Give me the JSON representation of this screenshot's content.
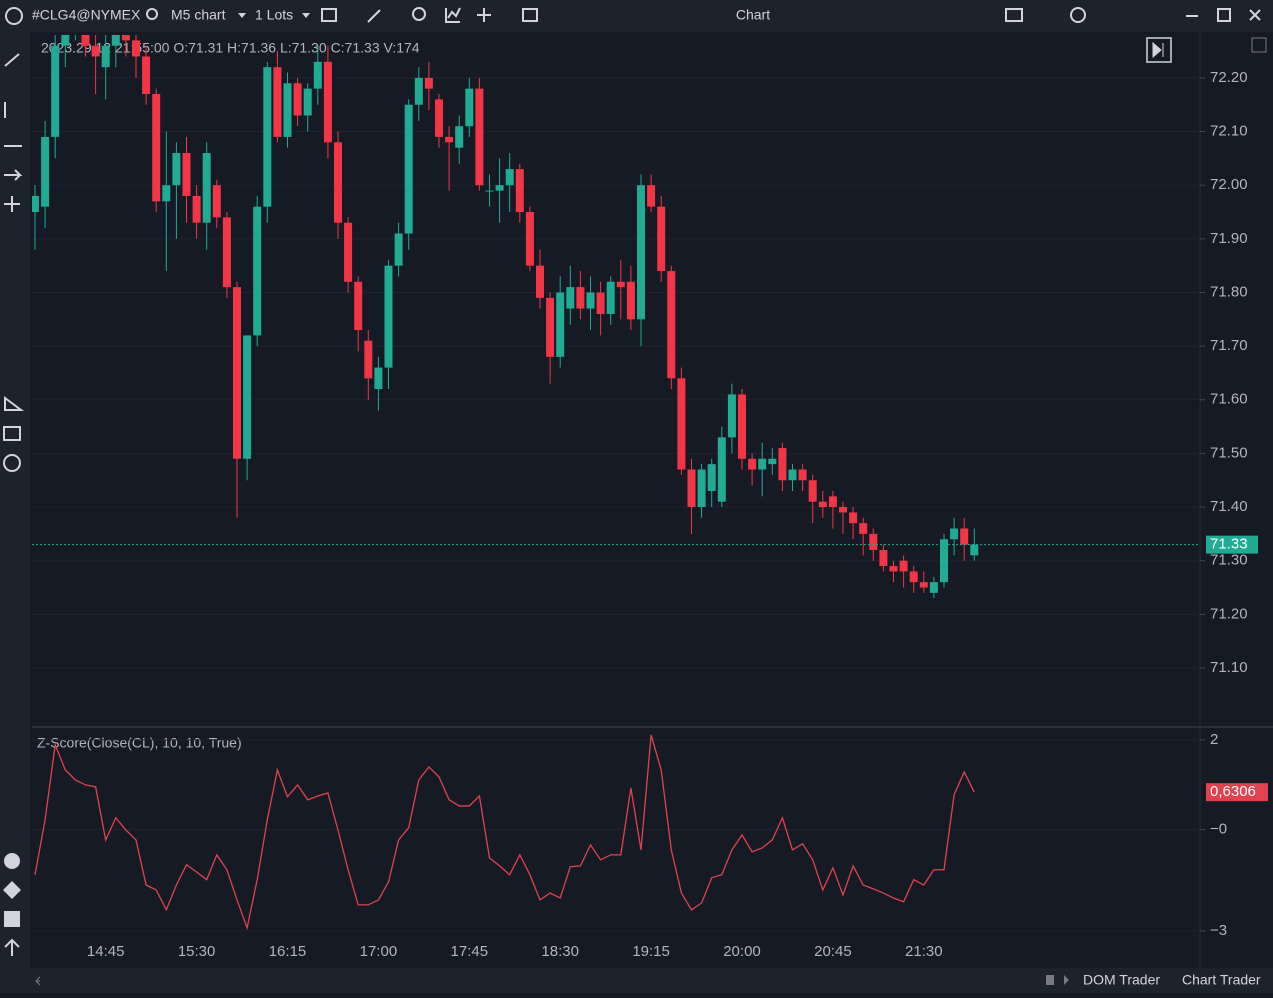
{
  "toolbar": {
    "symbol": "#CLG4@NYMEX",
    "timeframe": "M5 chart",
    "lots": "1 Lots",
    "window_title": "Chart"
  },
  "chart_data": [
    {
      "type": "candlestick",
      "ohlc_header": "2023.29.12 21:55:00 O:71.31 H:71.36 L:71.30 C:71.33 V:174",
      "categories": [
        null,
        null,
        null,
        null,
        null,
        null,
        null,
        "14:45",
        null,
        null,
        null,
        null,
        null,
        null,
        null,
        null,
        "15:30",
        null,
        null,
        null,
        null,
        null,
        null,
        null,
        null,
        "16:15",
        null,
        null,
        null,
        null,
        null,
        null,
        null,
        null,
        "17:00",
        null,
        null,
        null,
        null,
        null,
        null,
        null,
        null,
        "17:45",
        null,
        null,
        null,
        null,
        null,
        null,
        null,
        null,
        "18:30",
        null,
        null,
        null,
        null,
        null,
        null,
        null,
        null,
        "19:15",
        null,
        null,
        null,
        null,
        null,
        null,
        null,
        null,
        "20:00",
        null,
        null,
        null,
        null,
        null,
        null,
        null,
        null,
        "20:45",
        null,
        null,
        null,
        null,
        null,
        null,
        null,
        null,
        "21:30",
        null,
        null,
        null,
        null,
        null
      ],
      "open": [
        71.95,
        71.96,
        72.09,
        72.26,
        72.3,
        72.31,
        72.26,
        72.22,
        72.26,
        72.28,
        72.27,
        72.24,
        72.17,
        71.97,
        72.0,
        72.06,
        71.98,
        71.93,
        72.0,
        71.94,
        71.81,
        71.49,
        71.72,
        71.96,
        72.22,
        72.09,
        72.19,
        72.13,
        72.18,
        72.23,
        72.08,
        71.93,
        71.82,
        71.71,
        71.62,
        71.66,
        71.85,
        71.91,
        72.15,
        72.2,
        72.16,
        72.09,
        72.07,
        72.11,
        72.18,
        71.99,
        71.99,
        72.0,
        72.03,
        71.95,
        71.85,
        71.79,
        71.68,
        71.77,
        71.81,
        71.77,
        71.8,
        71.76,
        71.82,
        71.82,
        71.75,
        72.0,
        71.96,
        71.84,
        71.64,
        71.47,
        71.4,
        71.43,
        71.41,
        71.53,
        71.61,
        71.49,
        71.47,
        71.48,
        71.51,
        71.45,
        71.47,
        71.45,
        71.41,
        71.42,
        71.4,
        71.39,
        71.37,
        71.35,
        71.32,
        71.29,
        71.3,
        71.28,
        71.26,
        71.24,
        71.26,
        71.34,
        71.36,
        71.31
      ],
      "high": [
        72.0,
        72.12,
        72.3,
        72.33,
        72.34,
        72.33,
        72.28,
        72.29,
        72.3,
        72.32,
        72.3,
        72.26,
        72.18,
        72.1,
        72.08,
        72.09,
        72.0,
        72.08,
        72.01,
        71.95,
        71.82,
        71.72,
        71.98,
        72.23,
        72.25,
        72.21,
        72.2,
        72.19,
        72.26,
        72.26,
        72.1,
        71.94,
        71.83,
        71.73,
        71.68,
        71.86,
        71.93,
        72.16,
        72.22,
        72.23,
        72.17,
        72.11,
        72.13,
        72.2,
        72.2,
        72.02,
        72.05,
        72.06,
        72.04,
        71.96,
        71.88,
        71.8,
        71.83,
        71.85,
        71.84,
        71.83,
        71.82,
        71.83,
        71.86,
        71.85,
        72.02,
        72.02,
        71.98,
        71.85,
        71.66,
        71.49,
        71.48,
        71.49,
        71.55,
        71.63,
        71.62,
        71.5,
        71.52,
        71.51,
        71.52,
        71.48,
        71.48,
        71.46,
        71.43,
        71.43,
        71.41,
        71.4,
        71.38,
        71.36,
        71.33,
        71.3,
        71.31,
        71.29,
        71.28,
        71.27,
        71.35,
        71.38,
        71.38,
        71.36
      ],
      "low": [
        71.88,
        71.92,
        72.05,
        72.22,
        72.27,
        72.24,
        72.17,
        72.16,
        72.22,
        72.24,
        72.2,
        72.15,
        71.95,
        71.84,
        71.9,
        71.93,
        71.9,
        71.88,
        71.92,
        71.79,
        71.38,
        71.45,
        71.7,
        71.93,
        72.08,
        72.07,
        72.11,
        72.1,
        72.15,
        72.05,
        71.9,
        71.8,
        71.69,
        71.6,
        71.58,
        71.62,
        71.83,
        71.88,
        72.12,
        72.14,
        72.07,
        71.99,
        72.04,
        72.09,
        71.99,
        71.96,
        71.93,
        71.95,
        71.93,
        71.84,
        71.77,
        71.63,
        71.66,
        71.74,
        71.75,
        71.73,
        71.72,
        71.74,
        71.75,
        71.73,
        71.7,
        71.95,
        71.82,
        71.62,
        71.46,
        71.35,
        71.38,
        71.4,
        71.4,
        71.5,
        71.47,
        71.44,
        71.42,
        71.46,
        71.43,
        71.43,
        71.43,
        71.37,
        71.38,
        71.36,
        71.35,
        71.34,
        71.31,
        71.3,
        71.28,
        71.26,
        71.25,
        71.24,
        71.24,
        71.23,
        71.25,
        71.31,
        71.3,
        71.3
      ],
      "close": [
        71.98,
        72.09,
        72.26,
        72.3,
        72.31,
        72.26,
        72.24,
        72.26,
        72.28,
        72.27,
        72.24,
        72.17,
        71.97,
        72.0,
        72.06,
        71.98,
        71.93,
        72.06,
        71.94,
        71.81,
        71.49,
        71.72,
        71.96,
        72.22,
        72.09,
        72.19,
        72.13,
        72.18,
        72.23,
        72.08,
        71.93,
        71.82,
        71.73,
        71.64,
        71.66,
        71.85,
        71.91,
        72.15,
        72.2,
        72.18,
        72.09,
        72.08,
        72.11,
        72.18,
        72.0,
        71.99,
        72.0,
        72.03,
        71.95,
        71.85,
        71.79,
        71.68,
        71.8,
        71.81,
        71.77,
        71.8,
        71.76,
        71.82,
        71.81,
        71.75,
        72.0,
        71.96,
        71.84,
        71.64,
        71.47,
        71.4,
        71.47,
        71.48,
        71.53,
        71.61,
        71.49,
        71.47,
        71.49,
        71.49,
        71.45,
        71.47,
        71.45,
        71.41,
        71.4,
        71.4,
        71.39,
        71.37,
        71.35,
        71.32,
        71.29,
        71.28,
        71.28,
        71.26,
        71.25,
        71.26,
        71.34,
        71.36,
        71.33,
        71.33
      ],
      "up_color": "#22ab94",
      "down_color": "#f23645",
      "ylim": [
        70.99,
        72.28
      ],
      "yticks": [
        {
          "value": 71.1,
          "label": "71.10"
        },
        {
          "value": 71.2,
          "label": "71.20"
        },
        {
          "value": 71.3,
          "label": "71.30"
        },
        {
          "value": 71.4,
          "label": "71.40"
        },
        {
          "value": 71.5,
          "label": "71.50"
        },
        {
          "value": 71.6,
          "label": "71.60"
        },
        {
          "value": 71.7,
          "label": "71.70"
        },
        {
          "value": 71.8,
          "label": "71.80"
        },
        {
          "value": 71.9,
          "label": "71.90"
        },
        {
          "value": 72.0,
          "label": "72.00"
        },
        {
          "value": 72.1,
          "label": "72.10"
        },
        {
          "value": 72.2,
          "label": "72.20"
        }
      ],
      "current_price": 71.33,
      "grid": true
    },
    {
      "type": "line",
      "title": "Z-Score(Close(CL), 10, 10, True)",
      "values": [
        -1.53,
        -0.09,
        1.87,
        1.21,
        0.95,
        0.82,
        0.77,
        -0.62,
        -0.04,
        -0.36,
        -0.62,
        -1.8,
        -1.93,
        -2.45,
        -1.8,
        -1.27,
        -1.46,
        -1.66,
        -1.01,
        -1.4,
        -2.19,
        -2.92,
        -1.66,
        -0.09,
        1.21,
        0.51,
        0.82,
        0.43,
        0.53,
        0.61,
        -0.36,
        -1.4,
        -2.32,
        -2.32,
        -2.19,
        -1.72,
        -0.62,
        -0.3,
        0.95,
        1.29,
        1.03,
        0.43,
        0.27,
        0.27,
        0.53,
        -1.09,
        -1.3,
        -1.53,
        -1.01,
        -1.53,
        -2.19,
        -2.01,
        -2.14,
        -1.32,
        -1.3,
        -0.75,
        -1.14,
        -1.01,
        -1.01,
        0.74,
        -0.88,
        2.13,
        1.21,
        -0.88,
        -2.01,
        -2.45,
        -2.27,
        -1.61,
        -1.53,
        -0.88,
        -0.49,
        -0.93,
        -0.83,
        -0.62,
        -0.04,
        -0.88,
        -0.72,
        -1.14,
        -1.93,
        -1.35,
        -2.06,
        -1.3,
        -1.8,
        -1.9,
        -2.01,
        -2.14,
        -2.24,
        -1.66,
        -1.8,
        -1.4,
        -1.4,
        0.56,
        1.16,
        0.6306
      ],
      "color": "#e0434f",
      "ylim": [
        -3.37,
        2.31
      ],
      "yticks": [
        {
          "value": -3,
          "label": "−3"
        },
        {
          "value": -0.35,
          "label": "−0"
        },
        2
      ],
      "current_value": {
        "value": 0.6306,
        "label": "0,6306"
      },
      "grid": true
    }
  ],
  "footer": {
    "dom_trader": "DOM Trader",
    "chart_trader": "Chart Trader"
  }
}
